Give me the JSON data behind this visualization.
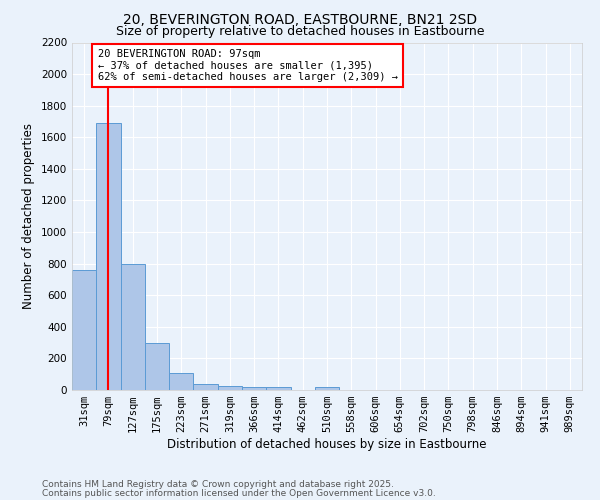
{
  "title": "20, BEVERINGTON ROAD, EASTBOURNE, BN21 2SD",
  "subtitle": "Size of property relative to detached houses in Eastbourne",
  "xlabel": "Distribution of detached houses by size in Eastbourne",
  "ylabel": "Number of detached properties",
  "categories": [
    "31sqm",
    "79sqm",
    "127sqm",
    "175sqm",
    "223sqm",
    "271sqm",
    "319sqm",
    "366sqm",
    "414sqm",
    "462sqm",
    "510sqm",
    "558sqm",
    "606sqm",
    "654sqm",
    "702sqm",
    "750sqm",
    "798sqm",
    "846sqm",
    "894sqm",
    "941sqm",
    "989sqm"
  ],
  "values": [
    760,
    1690,
    800,
    300,
    110,
    38,
    28,
    18,
    18,
    0,
    20,
    0,
    0,
    0,
    0,
    0,
    0,
    0,
    0,
    0,
    0
  ],
  "bar_color": "#aec6e8",
  "bar_edge_color": "#5b9bd5",
  "vline_x": 1,
  "vline_color": "red",
  "ylim": [
    0,
    2200
  ],
  "yticks": [
    0,
    200,
    400,
    600,
    800,
    1000,
    1200,
    1400,
    1600,
    1800,
    2000,
    2200
  ],
  "annotation_text": "20 BEVERINGTON ROAD: 97sqm\n← 37% of detached houses are smaller (1,395)\n62% of semi-detached houses are larger (2,309) →",
  "annotation_box_color": "white",
  "annotation_box_edgecolor": "red",
  "footer_line1": "Contains HM Land Registry data © Crown copyright and database right 2025.",
  "footer_line2": "Contains public sector information licensed under the Open Government Licence v3.0.",
  "bg_color": "#eaf2fb",
  "plot_bg_color": "#eaf2fb",
  "grid_color": "white",
  "title_fontsize": 10,
  "subtitle_fontsize": 9,
  "axis_label_fontsize": 8.5,
  "tick_fontsize": 7.5,
  "footer_fontsize": 6.5,
  "annotation_fontsize": 7.5
}
